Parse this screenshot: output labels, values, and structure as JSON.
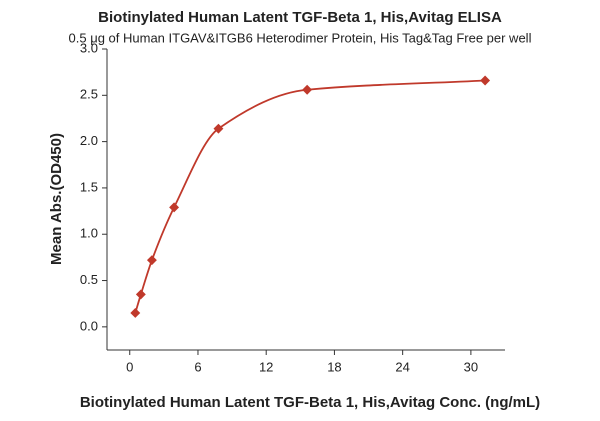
{
  "chart_data": {
    "type": "scatter",
    "title": "Biotinylated Human Latent TGF-Beta 1, His,Avitag ELISA",
    "subtitle": "0.5 μg of Human ITGAV&ITGB6 Heterodimer Protein, His Tag&Tag Free per well",
    "x_label": "Biotinylated Human Latent TGF-Beta 1, His,Avitag Conc. (ng/mL)",
    "y_label": "Mean Abs.(OD450)",
    "series": [
      {
        "color": "#c0392b",
        "x": [
          0.488,
          0.977,
          1.95,
          3.9,
          7.8,
          15.6,
          31.25
        ],
        "values": [
          0.15,
          0.35,
          0.72,
          1.29,
          2.14,
          2.56,
          2.66
        ]
      }
    ],
    "xlim": [
      -2,
      33
    ],
    "xticks": [
      0,
      6,
      12,
      18,
      24,
      30
    ],
    "ylim": [
      -0.25,
      3.0
    ],
    "yticks": [
      {
        "value": 0,
        "label": "0.0"
      },
      {
        "value": 0.5,
        "label": "0.5"
      },
      {
        "value": 1,
        "label": "1.0"
      },
      {
        "value": 1.5,
        "label": "1.5"
      },
      {
        "value": 2,
        "label": "2.0"
      },
      {
        "value": 2.5,
        "label": "2.5"
      },
      {
        "value": 3,
        "label": "3.0"
      }
    ],
    "fit_line": true
  }
}
